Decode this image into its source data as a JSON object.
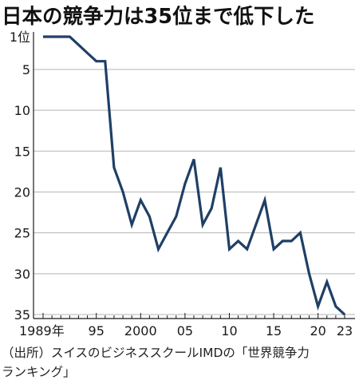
{
  "title": "日本の競争力は35位まで低下した",
  "source": {
    "line1": "（出所）スイスのビジネススクールIMDの「世界競争力",
    "line2": "ランキング」"
  },
  "colors": {
    "line": "#1f3f66",
    "grid": "#b5b5b5",
    "axis": "#1a1a1a"
  },
  "chart_data": {
    "type": "line",
    "title": "日本の競争力は35位まで低下した",
    "xlabel": "",
    "ylabel": "",
    "y_inverted": true,
    "xlim": [
      1989,
      2023
    ],
    "ylim": [
      1,
      35
    ],
    "grid": "horizontal",
    "y_ticks": [
      {
        "value": 1,
        "label": "1位"
      },
      {
        "value": 5,
        "label": "5"
      },
      {
        "value": 10,
        "label": "10"
      },
      {
        "value": 15,
        "label": "15"
      },
      {
        "value": 20,
        "label": "20"
      },
      {
        "value": 25,
        "label": "25"
      },
      {
        "value": 30,
        "label": "30"
      },
      {
        "value": 35,
        "label": "35"
      }
    ],
    "x_ticks": [
      {
        "value": 1989,
        "label": "1989年"
      },
      {
        "value": 1995,
        "label": "95"
      },
      {
        "value": 2000,
        "label": "2000"
      },
      {
        "value": 2005,
        "label": "05"
      },
      {
        "value": 2010,
        "label": "10"
      },
      {
        "value": 2015,
        "label": "15"
      },
      {
        "value": 2020,
        "label": "20"
      },
      {
        "value": 2023,
        "label": "23"
      }
    ],
    "series": [
      {
        "x": [
          1989,
          1990,
          1991,
          1992,
          1993,
          1994,
          1995,
          1996,
          1997,
          1998,
          1999,
          2000,
          2001,
          2002,
          2003,
          2004,
          2005,
          2006,
          2007,
          2008,
          2009,
          2010,
          2011,
          2012,
          2013,
          2014,
          2015,
          2016,
          2017,
          2018,
          2019,
          2020,
          2021,
          2022,
          2023
        ],
        "y": [
          1,
          1,
          1,
          1,
          2,
          3,
          4,
          4,
          17,
          20,
          24,
          21,
          23,
          27,
          25,
          23,
          19,
          16,
          24,
          22,
          17,
          27,
          26,
          27,
          24,
          21,
          27,
          26,
          26,
          25,
          30,
          34,
          31,
          34,
          35
        ]
      }
    ]
  }
}
